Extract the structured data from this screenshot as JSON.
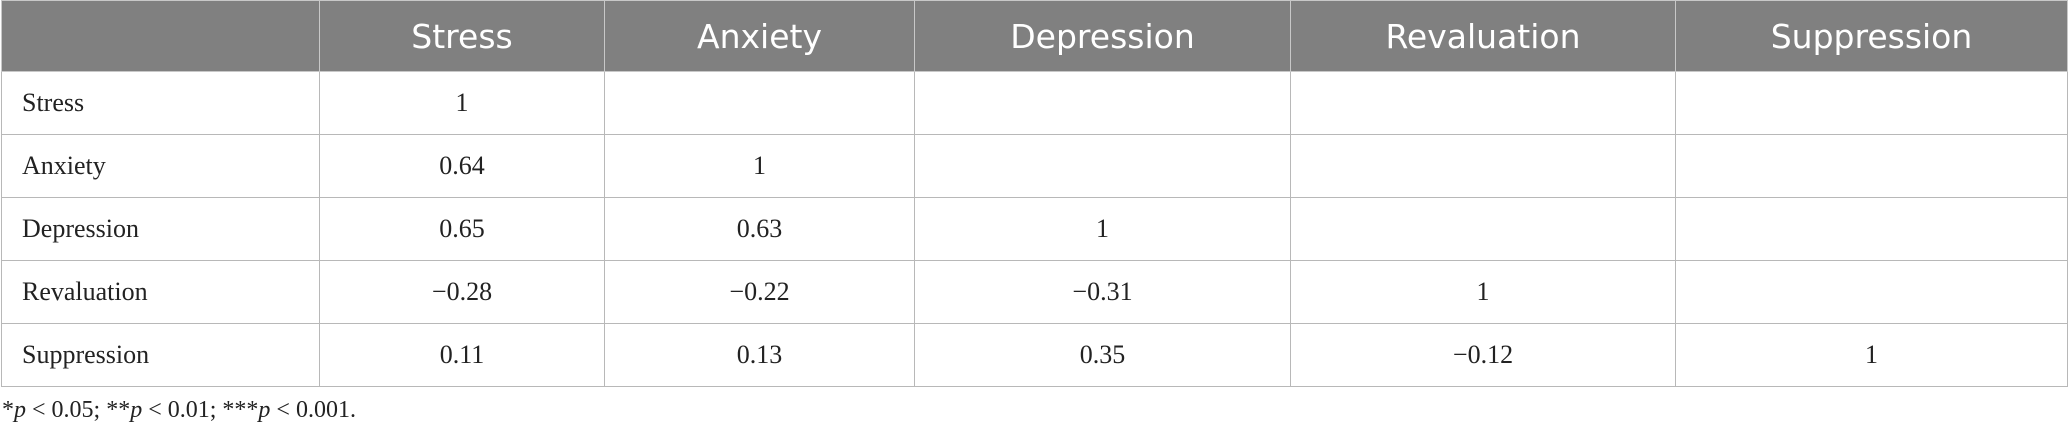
{
  "table": {
    "header": [
      "Stress",
      "Anxiety",
      "Depression",
      "Revaluation",
      "Suppression"
    ],
    "rows": [
      [
        "Stress",
        "1"
      ],
      [
        "Anxiety",
        "0.64",
        "1"
      ],
      [
        "Depression",
        "0.65",
        "0.63",
        "1"
      ],
      [
        "Revaluation",
        "−0.28",
        "−0.22",
        "−0.31",
        "1"
      ],
      [
        "Suppression",
        "0.11",
        "0.13",
        "0.35",
        "−0.12",
        "1"
      ]
    ]
  },
  "footnote": [
    "*",
    "p",
    " < 0.05; **",
    "p",
    " < 0.01; ***",
    "p",
    " < 0.001."
  ]
}
